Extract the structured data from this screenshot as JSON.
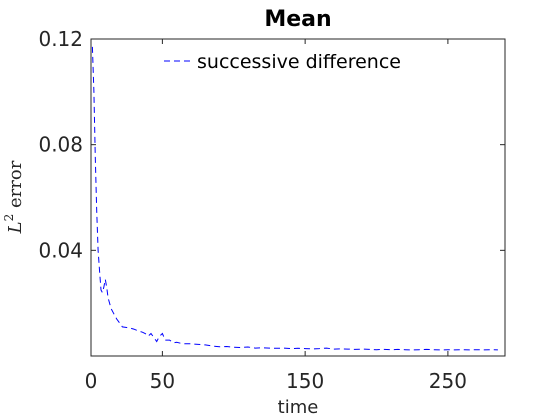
{
  "chart_data": {
    "type": "line",
    "title": "Mean",
    "xlabel": "time",
    "ylabel": "L² error",
    "ylabel_base": "L",
    "ylabel_sup": "2",
    "ylabel_rest": " error",
    "xlim": [
      0,
      290
    ],
    "ylim": [
      0,
      0.12
    ],
    "xticks": [
      0,
      50,
      150,
      250
    ],
    "xtick_labels": [
      "0",
      "50",
      "150",
      "250"
    ],
    "yticks": [
      0.04,
      0.08,
      0.12
    ],
    "ytick_labels": [
      "0.04",
      "0.08",
      "0.12"
    ],
    "grid": false,
    "legend_position": "top",
    "series": [
      {
        "name": "successive difference",
        "color": "#0000ff",
        "style": "dashed",
        "x": [
          1,
          2,
          3,
          4,
          5,
          6,
          7,
          8,
          9,
          10,
          11,
          12,
          13,
          14,
          16,
          18,
          20,
          22,
          25,
          28,
          30,
          33,
          36,
          38,
          40,
          42,
          44,
          46,
          48,
          50,
          52,
          55,
          58,
          60,
          63,
          66,
          70,
          75,
          80,
          85,
          90,
          95,
          100,
          105,
          110,
          115,
          120,
          125,
          130,
          135,
          140,
          145,
          150,
          155,
          160,
          165,
          170,
          175,
          180,
          185,
          190,
          195,
          200,
          205,
          210,
          215,
          220,
          225,
          230,
          235,
          240,
          245,
          250,
          255,
          260,
          265,
          270,
          275,
          280,
          285
        ],
        "y": [
          0.117,
          0.1,
          0.075,
          0.055,
          0.04,
          0.032,
          0.025,
          0.024,
          0.026,
          0.029,
          0.026,
          0.022,
          0.02,
          0.018,
          0.016,
          0.014,
          0.0125,
          0.011,
          0.0108,
          0.0105,
          0.0102,
          0.0095,
          0.009,
          0.0085,
          0.0075,
          0.0085,
          0.007,
          0.0055,
          0.0075,
          0.0085,
          0.006,
          0.006,
          0.005,
          0.0052,
          0.0048,
          0.0046,
          0.0046,
          0.0044,
          0.0042,
          0.0038,
          0.0035,
          0.0036,
          0.0033,
          0.0032,
          0.0034,
          0.003,
          0.0031,
          0.003,
          0.0029,
          0.003,
          0.0028,
          0.0029,
          0.0028,
          0.0027,
          0.0028,
          0.003,
          0.0026,
          0.0027,
          0.0026,
          0.0025,
          0.0026,
          0.0025,
          0.0024,
          0.0025,
          0.0024,
          0.0025,
          0.0024,
          0.0023,
          0.0024,
          0.0025,
          0.0024,
          0.0023,
          0.0024,
          0.0023,
          0.0024,
          0.0023,
          0.0024,
          0.0023,
          0.0024,
          0.0023
        ]
      }
    ]
  }
}
